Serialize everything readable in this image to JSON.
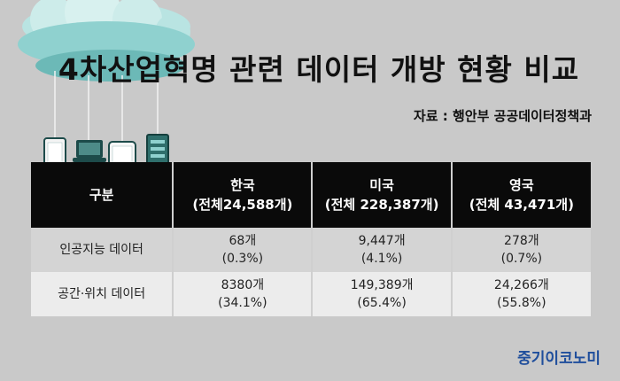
{
  "title": "4차산업혁명 관련 데이터 개방 현황 비교",
  "source": "자료 : 행안부 공공데이터정책과",
  "table": {
    "headers": [
      {
        "line1": "구분",
        "line2": ""
      },
      {
        "line1": "한국",
        "line2": "(전체24,588개)"
      },
      {
        "line1": "미국",
        "line2": "(전체 228,387개)"
      },
      {
        "line1": "영국",
        "line2": "(전체 43,471개)"
      }
    ],
    "rows": [
      {
        "label": "인공지능 데이터",
        "cells": [
          {
            "count": "68개",
            "pct": "(0.3%)"
          },
          {
            "count": "9,447개",
            "pct": "(4.1%)"
          },
          {
            "count": "278개",
            "pct": "(0.7%)"
          }
        ]
      },
      {
        "label": "공간·위치 데이터",
        "cells": [
          {
            "count": "8380개",
            "pct": "(34.1%)"
          },
          {
            "count": "149,389개",
            "pct": "(65.4%)"
          },
          {
            "count": "24,266개",
            "pct": "(55.8%)"
          }
        ]
      }
    ]
  },
  "brand": "중기이코노미",
  "colors": {
    "background": "#c9c9c9",
    "header_bg": "#0a0a0a",
    "row1_bg": "#d4d4d4",
    "row2_bg": "#ececec",
    "cloud": "#8fd1cf",
    "brand": "#1f4e9c"
  },
  "icons": [
    "cloud-icon",
    "smartphone-icon",
    "laptop-icon",
    "tablet-icon",
    "server-icon"
  ]
}
